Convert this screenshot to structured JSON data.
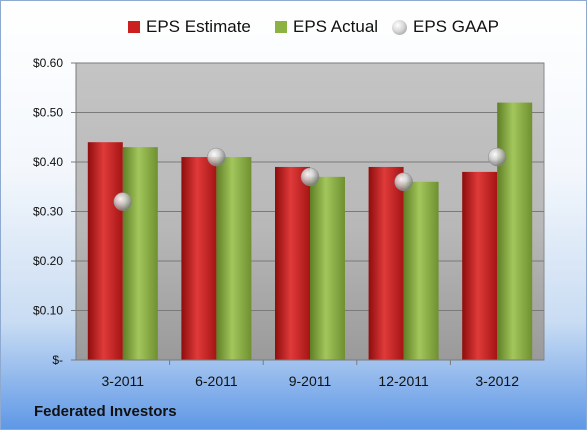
{
  "chart_data": {
    "type": "bar",
    "title": "",
    "xlabel": "",
    "ylabel": "",
    "categories": [
      "3-2011",
      "6-2011",
      "9-2011",
      "12-2011",
      "3-2012"
    ],
    "series": [
      {
        "name": "EPS Estimate",
        "type": "bar",
        "color": "#cc1f1f",
        "values": [
          0.44,
          0.41,
          0.39,
          0.39,
          0.38
        ]
      },
      {
        "name": "EPS Actual",
        "type": "bar",
        "color": "#8db244",
        "values": [
          0.43,
          0.41,
          0.37,
          0.36,
          0.52
        ]
      },
      {
        "name": "EPS GAAP",
        "type": "scatter",
        "color": "#b0b0b0",
        "values": [
          0.32,
          0.41,
          0.37,
          0.36,
          0.41
        ]
      }
    ],
    "ylim": [
      0,
      0.6
    ],
    "yticks": [
      {
        "value": 0.6,
        "label": "$0.60"
      },
      {
        "value": 0.5,
        "label": "$0.50"
      },
      {
        "value": 0.4,
        "label": "$0.40"
      },
      {
        "value": 0.3,
        "label": "$0.30"
      },
      {
        "value": 0.2,
        "label": "$0.20"
      },
      {
        "value": 0.1,
        "label": "$0.10"
      },
      {
        "value": 0,
        "label": "$-"
      }
    ],
    "grid": true,
    "legend_position": "top"
  },
  "footer": {
    "company": "Federated Investors"
  }
}
